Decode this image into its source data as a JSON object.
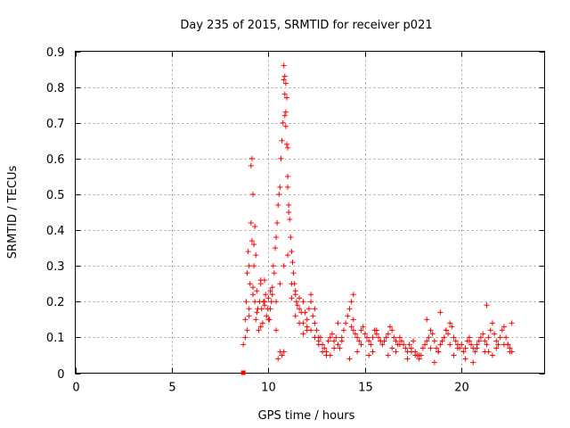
{
  "chart_data": {
    "type": "scatter",
    "title": "Day 235 of 2015, SRMTID for receiver p021",
    "xlabel": "GPS time / hours",
    "ylabel": "SRMTID / TECUs",
    "xlim": [
      0,
      24.3
    ],
    "ylim": [
      0,
      0.9
    ],
    "x_ticks": [
      0,
      5,
      10,
      15,
      20
    ],
    "x_tick_labels": [
      "0",
      "5",
      "10",
      "15",
      "20"
    ],
    "y_ticks": [
      0,
      0.1,
      0.2,
      0.3,
      0.4,
      0.5,
      0.6,
      0.7,
      0.8,
      0.9
    ],
    "y_tick_labels": [
      "0",
      "0.1",
      "0.2",
      "0.3",
      "0.4",
      "0.5",
      "0.6",
      "0.7",
      "0.8",
      "0.9"
    ],
    "grid": true,
    "marker": "+",
    "color": "#ff0000",
    "series": [
      {
        "name": "SRMTID",
        "x": [
          8.7,
          8.8,
          8.85,
          8.9,
          8.95,
          9.0,
          9.05,
          9.1,
          9.15,
          9.2,
          9.25,
          9.3,
          9.35,
          9.4,
          9.45,
          9.5,
          9.55,
          9.6,
          9.65,
          9.7,
          9.75,
          9.8,
          9.85,
          9.9,
          9.95,
          10.0,
          10.05,
          10.1,
          10.15,
          10.2,
          10.25,
          10.3,
          10.35,
          10.4,
          10.45,
          10.5,
          10.55,
          10.6,
          10.65,
          10.7,
          10.75,
          10.8,
          10.85,
          10.9,
          10.95,
          11.0,
          11.05,
          11.1,
          11.15,
          11.2,
          11.25,
          11.3,
          11.35,
          11.4,
          11.45,
          11.5,
          11.6,
          11.7,
          11.8,
          11.9,
          12.0,
          12.1,
          12.2,
          12.3,
          12.4,
          12.5,
          12.6,
          12.7,
          12.8,
          12.9,
          13.0,
          13.1,
          13.2,
          13.3,
          13.4,
          13.5,
          13.6,
          13.7,
          13.8,
          13.9,
          14.0,
          14.1,
          14.2,
          14.3,
          14.4,
          14.5,
          14.6,
          14.7,
          14.8,
          14.9,
          15.0,
          15.1,
          15.2,
          15.3,
          15.4,
          15.5,
          15.6,
          15.7,
          15.8,
          15.9,
          16.0,
          16.1,
          16.2,
          16.3,
          16.4,
          16.5,
          16.6,
          16.7,
          16.8,
          16.9,
          17.0,
          17.1,
          17.2,
          17.3,
          17.4,
          17.5,
          17.6,
          17.7,
          17.8,
          17.9,
          18.0,
          18.1,
          18.2,
          18.3,
          18.4,
          18.5,
          18.6,
          18.7,
          18.8,
          18.9,
          19.0,
          19.1,
          19.2,
          19.3,
          19.4,
          19.5,
          19.6,
          19.7,
          19.8,
          19.9,
          20.0,
          20.1,
          20.2,
          20.3,
          20.4,
          20.5,
          20.6,
          20.7,
          20.8,
          20.9,
          21.0,
          21.1,
          21.2,
          21.3,
          21.4,
          21.5,
          21.6,
          21.7,
          21.8,
          21.9,
          22.0,
          22.1,
          22.2,
          22.3,
          22.4,
          22.5,
          22.6,
          9.1,
          9.15,
          9.2,
          9.3,
          9.25,
          10.8,
          10.85,
          10.9,
          10.95,
          11.0,
          10.85,
          10.9,
          11.0,
          11.05,
          9.0,
          9.35,
          9.6,
          9.8,
          10.1,
          10.4,
          10.6,
          10.7,
          11.2,
          11.4,
          11.6,
          11.8,
          12.0,
          12.2,
          12.4,
          12.6,
          13.2,
          13.6,
          14.2,
          14.6,
          15.2,
          15.6,
          16.2,
          16.6,
          17.2,
          17.6,
          18.2,
          18.6,
          19.2,
          19.6,
          20.2,
          20.6,
          21.2,
          21.6,
          22.2,
          22.5,
          8.8,
          8.9,
          9.0,
          9.2,
          9.4,
          9.6,
          9.8,
          10.0,
          10.2,
          10.4,
          10.6,
          10.8,
          11.0,
          11.2,
          11.4,
          11.6,
          11.8,
          12.0,
          12.2,
          12.4,
          12.6,
          12.8,
          13.0,
          13.4,
          13.8,
          14.4,
          14.8,
          15.4,
          15.8,
          16.4,
          16.8,
          17.4,
          17.8,
          18.4,
          18.8,
          19.4,
          19.8,
          20.4,
          20.8,
          21.4,
          21.8,
          22.4,
          14.3,
          14.4,
          18.9,
          21.3,
          22.6,
          10.8,
          10.5
        ],
        "y": [
          0.08,
          0.15,
          0.2,
          0.28,
          0.34,
          0.18,
          0.25,
          0.42,
          0.37,
          0.22,
          0.3,
          0.2,
          0.15,
          0.23,
          0.18,
          0.12,
          0.2,
          0.25,
          0.18,
          0.14,
          0.2,
          0.26,
          0.22,
          0.16,
          0.18,
          0.21,
          0.15,
          0.18,
          0.2,
          0.24,
          0.3,
          0.28,
          0.35,
          0.38,
          0.42,
          0.47,
          0.5,
          0.52,
          0.6,
          0.65,
          0.7,
          0.82,
          0.78,
          0.73,
          0.64,
          0.55,
          0.47,
          0.43,
          0.38,
          0.34,
          0.31,
          0.28,
          0.25,
          0.22,
          0.2,
          0.19,
          0.18,
          0.17,
          0.2,
          0.17,
          0.15,
          0.18,
          0.2,
          0.16,
          0.14,
          0.12,
          0.09,
          0.1,
          0.08,
          0.07,
          0.06,
          0.09,
          0.1,
          0.11,
          0.09,
          0.1,
          0.08,
          0.07,
          0.1,
          0.12,
          0.14,
          0.16,
          0.18,
          0.13,
          0.12,
          0.11,
          0.1,
          0.09,
          0.12,
          0.13,
          0.11,
          0.1,
          0.09,
          0.08,
          0.1,
          0.12,
          0.11,
          0.1,
          0.09,
          0.08,
          0.09,
          0.1,
          0.11,
          0.13,
          0.12,
          0.1,
          0.09,
          0.08,
          0.1,
          0.09,
          0.08,
          0.07,
          0.06,
          0.08,
          0.07,
          0.09,
          0.06,
          0.05,
          0.04,
          0.05,
          0.07,
          0.08,
          0.09,
          0.1,
          0.12,
          0.11,
          0.09,
          0.07,
          0.06,
          0.08,
          0.09,
          0.1,
          0.12,
          0.11,
          0.14,
          0.13,
          0.1,
          0.09,
          0.08,
          0.07,
          0.08,
          0.06,
          0.07,
          0.09,
          0.1,
          0.08,
          0.07,
          0.06,
          0.08,
          0.09,
          0.1,
          0.11,
          0.09,
          0.08,
          0.1,
          0.12,
          0.14,
          0.11,
          0.09,
          0.08,
          0.1,
          0.12,
          0.13,
          0.1,
          0.08,
          0.07,
          0.06,
          0.58,
          0.6,
          0.5,
          0.41,
          0.36,
          0.86,
          0.83,
          0.81,
          0.77,
          0.63,
          0.72,
          0.69,
          0.52,
          0.45,
          0.3,
          0.33,
          0.26,
          0.2,
          0.23,
          0.12,
          0.06,
          0.05,
          0.25,
          0.23,
          0.21,
          0.14,
          0.12,
          0.22,
          0.18,
          0.1,
          0.05,
          0.14,
          0.04,
          0.06,
          0.05,
          0.12,
          0.05,
          0.06,
          0.04,
          0.05,
          0.15,
          0.03,
          0.12,
          0.05,
          0.04,
          0.03,
          0.06,
          0.05,
          0.08,
          0.06,
          0.1,
          0.12,
          0.16,
          0.24,
          0.17,
          0.13,
          0.19,
          0.15,
          0.22,
          0.2,
          0.25,
          0.3,
          0.33,
          0.21,
          0.16,
          0.14,
          0.11,
          0.13,
          0.12,
          0.1,
          0.08,
          0.06,
          0.05,
          0.07,
          0.09,
          0.15,
          0.08,
          0.06,
          0.09,
          0.07,
          0.08,
          0.06,
          0.05,
          0.07,
          0.06,
          0.08,
          0.07,
          0.09,
          0.07,
          0.06,
          0.07,
          0.08,
          0.2,
          0.22,
          0.17,
          0.19,
          0.14,
          0.06,
          0.04
        ]
      }
    ],
    "extra_marker": {
      "x": 8.7,
      "y": 0.0,
      "shape": "small filled square"
    }
  }
}
